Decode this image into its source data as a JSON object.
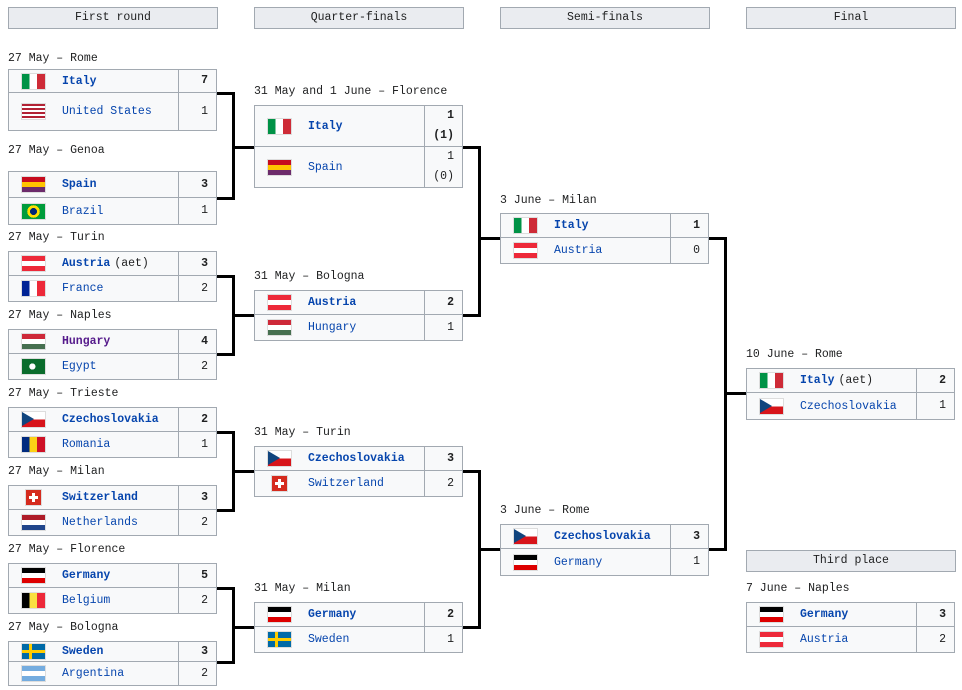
{
  "rounds": [
    "First round",
    "Quarter-finals",
    "Semi-finals",
    "Final"
  ],
  "third_place_label": "Third place",
  "matches": [
    {
      "id": "r1m1",
      "date": "27 May – Rome",
      "teams": [
        {
          "name": "Italy",
          "flag": "italy",
          "score": "7",
          "winner": true
        },
        {
          "name": "United States",
          "flag": "usa",
          "score": "1"
        }
      ]
    },
    {
      "id": "r1m2",
      "date": "27 May – Genoa",
      "teams": [
        {
          "name": "Spain",
          "flag": "spain",
          "score": "3",
          "winner": true
        },
        {
          "name": "Brazil",
          "flag": "brazil",
          "score": "1"
        }
      ]
    },
    {
      "id": "r1m3",
      "date": "27 May – Turin",
      "teams": [
        {
          "name": "Austria",
          "note": "(aet)",
          "flag": "austria",
          "score": "3",
          "winner": true
        },
        {
          "name": "France",
          "flag": "france",
          "score": "2"
        }
      ]
    },
    {
      "id": "r1m4",
      "date": "27 May – Naples",
      "teams": [
        {
          "name": "Hungary",
          "flag": "hungary",
          "score": "4",
          "winner": true,
          "visited": true
        },
        {
          "name": "Egypt",
          "flag": "egypt",
          "score": "2"
        }
      ]
    },
    {
      "id": "r1m5",
      "date": "27 May – Trieste",
      "teams": [
        {
          "name": "Czechoslovakia",
          "flag": "czech",
          "score": "2",
          "winner": true
        },
        {
          "name": "Romania",
          "flag": "romania",
          "score": "1"
        }
      ]
    },
    {
      "id": "r1m6",
      "date": "27 May – Milan",
      "teams": [
        {
          "name": "Switzerland",
          "flag": "switzerland",
          "score": "3",
          "winner": true
        },
        {
          "name": "Netherlands",
          "flag": "netherlands",
          "score": "2"
        }
      ]
    },
    {
      "id": "r1m7",
      "date": "27 May – Florence",
      "teams": [
        {
          "name": "Germany",
          "flag": "germany",
          "score": "5",
          "winner": true
        },
        {
          "name": "Belgium",
          "flag": "belgium",
          "score": "2"
        }
      ]
    },
    {
      "id": "r1m8",
      "date": "27 May – Bologna",
      "teams": [
        {
          "name": "Sweden",
          "flag": "sweden",
          "score": "3",
          "winner": true
        },
        {
          "name": "Argentina",
          "flag": "argentina",
          "score": "2"
        }
      ]
    },
    {
      "id": "qf1",
      "date": "31 May and 1 June – Florence",
      "teams": [
        {
          "name": "Italy",
          "flag": "italy",
          "score": "1",
          "score2": "(1)",
          "winner": true
        },
        {
          "name": "Spain",
          "flag": "spain",
          "score": "1",
          "score2": "(0)"
        }
      ]
    },
    {
      "id": "qf2",
      "date": "31 May – Bologna",
      "teams": [
        {
          "name": "Austria",
          "flag": "austria",
          "score": "2",
          "winner": true
        },
        {
          "name": "Hungary",
          "flag": "hungary",
          "score": "1"
        }
      ]
    },
    {
      "id": "qf3",
      "date": "31 May – Turin",
      "teams": [
        {
          "name": "Czechoslovakia",
          "flag": "czech",
          "score": "3",
          "winner": true
        },
        {
          "name": "Switzerland",
          "flag": "switzerland",
          "score": "2"
        }
      ]
    },
    {
      "id": "qf4",
      "date": "31 May – Milan",
      "teams": [
        {
          "name": "Germany",
          "flag": "germany",
          "score": "2",
          "winner": true
        },
        {
          "name": "Sweden",
          "flag": "sweden",
          "score": "1"
        }
      ]
    },
    {
      "id": "sf1",
      "date": "3 June – Milan",
      "teams": [
        {
          "name": "Italy",
          "flag": "italy",
          "score": "1",
          "winner": true
        },
        {
          "name": "Austria",
          "flag": "austria",
          "score": "0"
        }
      ]
    },
    {
      "id": "sf2",
      "date": "3 June – Rome",
      "teams": [
        {
          "name": "Czechoslovakia",
          "flag": "czech",
          "score": "3",
          "winner": true
        },
        {
          "name": "Germany",
          "flag": "germany",
          "score": "1"
        }
      ]
    },
    {
      "id": "final",
      "date": "10 June – Rome",
      "teams": [
        {
          "name": "Italy",
          "note": "(aet)",
          "flag": "italy",
          "score": "2",
          "winner": true
        },
        {
          "name": "Czechoslovakia",
          "flag": "czech",
          "score": "1"
        }
      ]
    },
    {
      "id": "third",
      "date": "7 June – Naples",
      "teams": [
        {
          "name": "Germany",
          "flag": "germany",
          "score": "3",
          "winner": true
        },
        {
          "name": "Austria",
          "flag": "austria",
          "score": "2"
        }
      ]
    }
  ]
}
